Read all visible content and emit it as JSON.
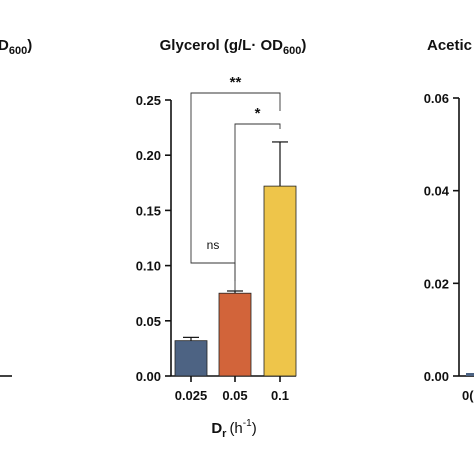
{
  "left_chart": {
    "title_fragment": "D",
    "title_sub_fragment": "600",
    "title_close": ")"
  },
  "chart_data": [
    {
      "type": "bar",
      "title": "Glycerol (g/L· OD",
      "title_sub": "600",
      "title_close": ")",
      "categories": [
        "0.025",
        "0.05",
        "0.1"
      ],
      "values": [
        0.032,
        0.075,
        0.172
      ],
      "errors": [
        0.003,
        0.002,
        0.04
      ],
      "colors": [
        "#4d6383",
        "#d2643a",
        "#eec54a"
      ],
      "ylim": [
        0,
        0.25
      ],
      "yticks": [
        "0.00",
        "0.05",
        "0.10",
        "0.15",
        "0.20",
        "0.25"
      ],
      "xlabel": "D",
      "xlabel_sub": "r",
      "xlabel_unit": "(h",
      "xlabel_sup": "-1",
      "xlabel_close": ")",
      "grid": false,
      "significance": [
        {
          "from": "0.025",
          "to": "0.05",
          "label": "ns"
        },
        {
          "from": "0.05",
          "to": "0.1",
          "label": "*"
        },
        {
          "from": "0.025",
          "to": "0.1",
          "label": "**"
        }
      ]
    },
    {
      "type": "bar",
      "title": "Acetic",
      "ylim": [
        0,
        0.06
      ],
      "yticks": [
        "0.00",
        "0.02",
        "0.04",
        "0.06"
      ],
      "x_tick_fragment": "0("
    }
  ]
}
